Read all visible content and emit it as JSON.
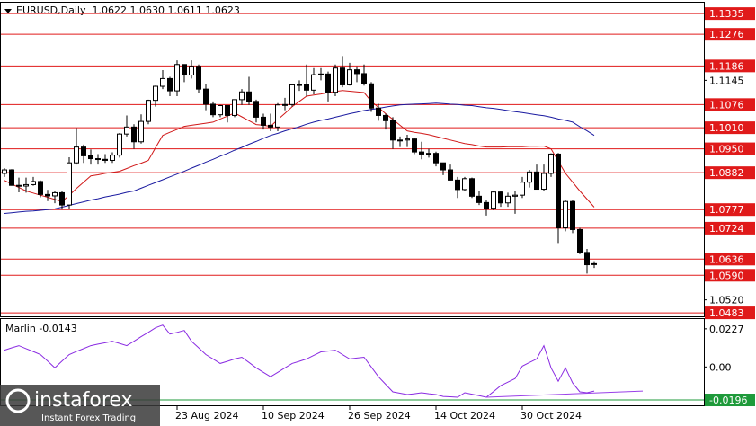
{
  "chart_data": [
    {
      "type": "candlestick",
      "header": "EURUSD,Daily  1.0622 1.0630 1.0611 1.0623",
      "categories": [
        null,
        null,
        null,
        null,
        null,
        null,
        null,
        null,
        null,
        null,
        null,
        null,
        null,
        null,
        null,
        null,
        null,
        null,
        null,
        null,
        null,
        null,
        null,
        null,
        "23 Aug 2024",
        null,
        null,
        null,
        null,
        null,
        null,
        null,
        null,
        null,
        null,
        null,
        "10 Sep 2024",
        null,
        null,
        null,
        null,
        null,
        null,
        null,
        null,
        null,
        null,
        null,
        "26 Sep 2024",
        null,
        null,
        null,
        null,
        null,
        null,
        null,
        null,
        null,
        null,
        null,
        "14 Oct 2024",
        null,
        null,
        null,
        null,
        null,
        null,
        null,
        null,
        null,
        null,
        null,
        "30 Oct 2024",
        null,
        null,
        null,
        null,
        null,
        null,
        null,
        null,
        null,
        null
      ],
      "open": [
        1.088,
        1.089,
        1.0846,
        1.0844,
        1.0848,
        1.0857,
        1.082,
        1.0816,
        1.0825,
        1.079,
        1.091,
        1.0955,
        1.093,
        1.0922,
        1.092,
        1.0917,
        1.0932,
        1.0992,
        1.1012,
        1.097,
        1.1028,
        1.1088,
        1.1128,
        1.115,
        1.1115,
        1.119,
        1.116,
        1.1185,
        1.112,
        1.1077,
        1.1047,
        1.1073,
        1.1045,
        1.109,
        1.1112,
        1.1085,
        1.104,
        1.1017,
        1.1012,
        1.1075,
        1.1076,
        1.1132,
        1.1133,
        1.1117,
        1.1161,
        1.1163,
        1.1111,
        1.118,
        1.1132,
        1.1175,
        1.1164,
        1.1135,
        1.1066,
        1.1045,
        1.103,
        1.0975,
        1.0975,
        1.0978,
        1.0941,
        1.0935,
        1.0937,
        1.091,
        1.089,
        1.0861,
        1.0834,
        1.0865,
        1.0815,
        1.0797,
        1.0781,
        1.0827,
        1.0796,
        1.0815,
        1.0818,
        1.0855,
        1.0884,
        1.0835,
        1.088,
        1.0935,
        1.0725,
        1.08,
        1.072,
        1.0655,
        1.0622
      ],
      "high": [
        1.0895,
        1.0892,
        1.0868,
        1.0868,
        1.087,
        1.086,
        1.0833,
        1.083,
        1.083,
        1.0926,
        1.1009,
        1.0962,
        1.0948,
        1.0935,
        1.0935,
        1.094,
        1.0995,
        1.1045,
        1.102,
        1.1048,
        1.109,
        1.113,
        1.1174,
        1.1155,
        1.1202,
        1.119,
        1.1202,
        1.119,
        1.1135,
        1.1085,
        1.1075,
        1.1073,
        1.109,
        1.112,
        1.1155,
        1.109,
        1.105,
        1.105,
        1.108,
        1.1095,
        1.1135,
        1.1145,
        1.119,
        1.118,
        1.118,
        1.117,
        1.119,
        1.1214,
        1.1195,
        1.1185,
        1.119,
        1.114,
        1.1078,
        1.105,
        1.104,
        1.0985,
        1.099,
        1.098,
        1.097,
        1.095,
        1.0942,
        1.091,
        1.0905,
        1.087,
        1.087,
        1.0868,
        1.083,
        1.0805,
        1.083,
        1.083,
        1.0825,
        1.083,
        1.087,
        1.089,
        1.0905,
        1.0905,
        1.0937,
        1.0938,
        1.0805,
        1.0805,
        1.0725,
        1.0665,
        1.063
      ],
      "low": [
        1.087,
        1.0845,
        1.0826,
        1.0825,
        1.0845,
        1.0812,
        1.0801,
        1.0795,
        1.0777,
        1.078,
        1.0905,
        1.091,
        1.0905,
        1.0905,
        1.091,
        1.091,
        1.0925,
        1.0985,
        1.095,
        1.0965,
        1.102,
        1.107,
        1.112,
        1.11,
        1.11,
        1.114,
        1.115,
        1.111,
        1.106,
        1.104,
        1.104,
        1.1025,
        1.104,
        1.1075,
        1.1075,
        1.1025,
        1.1005,
        1.1,
        1.1,
        1.106,
        1.107,
        1.1115,
        1.11,
        1.1105,
        1.1145,
        1.1085,
        1.11,
        1.1125,
        1.113,
        1.114,
        1.113,
        1.1055,
        1.103,
        1.1005,
        1.095,
        1.0955,
        1.0955,
        1.0935,
        1.092,
        1.0925,
        1.09,
        1.0875,
        1.086,
        1.081,
        1.083,
        1.081,
        1.079,
        1.076,
        1.0775,
        1.0785,
        1.0785,
        1.0765,
        1.081,
        1.084,
        1.0835,
        1.083,
        1.087,
        1.0682,
        1.0715,
        1.071,
        1.065,
        1.0595,
        1.0611
      ],
      "close": [
        1.089,
        1.0846,
        1.0844,
        1.0848,
        1.0857,
        1.082,
        1.0816,
        1.0825,
        1.079,
        1.091,
        1.0955,
        1.093,
        1.0922,
        1.092,
        1.0917,
        1.0932,
        1.0992,
        1.1012,
        1.097,
        1.1028,
        1.1088,
        1.1128,
        1.115,
        1.1115,
        1.119,
        1.116,
        1.1185,
        1.112,
        1.1077,
        1.1047,
        1.1073,
        1.1045,
        1.109,
        1.1112,
        1.1085,
        1.104,
        1.1017,
        1.1012,
        1.1075,
        1.1076,
        1.1132,
        1.1133,
        1.1117,
        1.1161,
        1.1163,
        1.1111,
        1.118,
        1.1132,
        1.1175,
        1.1164,
        1.1135,
        1.1066,
        1.1045,
        1.103,
        1.0975,
        1.0975,
        1.0978,
        1.0941,
        1.0935,
        1.0937,
        1.091,
        1.089,
        1.0861,
        1.0834,
        1.0865,
        1.0815,
        1.0797,
        1.0781,
        1.0827,
        1.0796,
        1.0815,
        1.0818,
        1.0855,
        1.0884,
        1.0835,
        1.088,
        1.0935,
        1.0725,
        1.08,
        1.072,
        1.0655,
        1.062,
        1.0623
      ],
      "series": [
        {
          "color": "#d01818",
          "values": [
            1.086,
            1.085,
            1.084,
            1.083,
            1.0824,
            1.0818,
            1.0812,
            1.0806,
            1.08,
            1.0818,
            1.0837,
            1.0855,
            1.0873,
            1.0876,
            1.088,
            1.0883,
            1.0886,
            1.0894,
            1.0902,
            1.0909,
            1.0917,
            1.0953,
            1.0988,
            1.0997,
            1.1005,
            1.1014,
            1.1017,
            1.102,
            1.1023,
            1.1026,
            1.1035,
            1.1043,
            1.1052,
            1.1041,
            1.103,
            1.1019,
            1.1017,
            1.1014,
            1.1033,
            1.1051,
            1.107,
            1.1085,
            1.11,
            1.1103,
            1.1106,
            1.111,
            1.1113,
            1.1116,
            1.1114,
            1.1112,
            1.111,
            1.1085,
            1.1068,
            1.105,
            1.1034,
            1.1017,
            1.1001,
            1.0997,
            1.0994,
            1.099,
            1.0985,
            1.098,
            1.0975,
            1.097,
            1.0965,
            1.0962,
            1.0958,
            1.0955,
            1.0955,
            1.0955,
            1.0956,
            1.0956,
            1.0956,
            1.0957,
            1.0957,
            1.0958,
            1.095,
            1.0915,
            1.088,
            1.0855,
            1.083,
            1.0807,
            1.0784
          ]
        },
        {
          "color": "#1a1aa0",
          "values": [
            1.0766,
            1.0768,
            1.077,
            1.0772,
            1.0773,
            1.0775,
            1.0777,
            1.0779,
            1.0784,
            1.0789,
            1.0794,
            1.0799,
            1.0804,
            1.0808,
            1.0813,
            1.0817,
            1.0821,
            1.0826,
            1.083,
            1.0838,
            1.0846,
            1.0854,
            1.0862,
            1.087,
            1.0878,
            1.0886,
            1.0895,
            1.0903,
            1.0912,
            1.092,
            1.0929,
            1.0937,
            1.0946,
            1.0954,
            1.0963,
            1.0971,
            1.098,
            1.0988,
            1.0994,
            1.1001,
            1.1007,
            1.1013,
            1.102,
            1.1026,
            1.1031,
            1.1035,
            1.104,
            1.1045,
            1.105,
            1.1054,
            1.1059,
            1.1062,
            1.1065,
            1.1069,
            1.1072,
            1.1075,
            1.1076,
            1.1077,
            1.1078,
            1.1079,
            1.108,
            1.1079,
            1.1077,
            1.1076,
            1.1074,
            1.1073,
            1.107,
            1.1067,
            1.1065,
            1.1062,
            1.1059,
            1.1056,
            1.1053,
            1.105,
            1.1047,
            1.1044,
            1.104,
            1.1035,
            1.1031,
            1.1026,
            1.1013,
            1.1001,
            1.0988
          ]
        }
      ],
      "ylim": [
        1.0473,
        1.1366
      ],
      "yticks": [
        1.1145,
        {
          "value": 1.052,
          "label": "1.0520"
        }
      ],
      "level_color": "#e01a1a",
      "levels": [
        1.1335,
        1.1276,
        1.1186,
        1.1076,
        {
          "value": 1.101,
          "label": "1.1010"
        },
        {
          "value": 1.095,
          "label": "1.0950"
        },
        1.0882,
        1.0777,
        1.0724,
        1.0636,
        {
          "value": 1.059,
          "label": "1.0590"
        },
        1.0483
      ]
    },
    {
      "type": "line",
      "title": "Marlin -0.0143",
      "series": [
        {
          "color": "#8a2be2",
          "values": [
            0.01,
            0.0114,
            0.0127,
            0.0109,
            0.0092,
            0.0074,
            0.0035,
            -0.0005,
            0.0035,
            0.0074,
            0.0092,
            0.0109,
            0.0127,
            0.0136,
            0.0144,
            0.0153,
            0.014,
            0.0127,
            0.0153,
            0.018,
            0.0206,
            0.0233,
            0.0249,
            0.0196,
            0.0206,
            0.0217,
            0.0153,
            0.0114,
            0.0074,
            0.0048,
            0.0021,
            0.0034,
            0.0048,
            0.0058,
            0.0027,
            -0.0005,
            -0.0032,
            -0.0058,
            -0.0032,
            -0.0005,
            0.0021,
            0.0034,
            0.0048,
            0.0069,
            0.009,
            0.0095,
            0.01,
            0.0074,
            0.0048,
            0.0053,
            0.0058,
            0.0,
            -0.0058,
            -0.0103,
            -0.0148,
            -0.0156,
            -0.0164,
            -0.0159,
            -0.0153,
            -0.0159,
            -0.0164,
            -0.0175,
            -0.0177,
            -0.018,
            -0.0153,
            -0.0162,
            -0.0171,
            -0.018,
            -0.0146,
            -0.0111,
            -0.009,
            -0.0069,
            0.0005,
            0.0027,
            0.0048,
            0.0127,
            -0.0005,
            -0.0085,
            -0.0005,
            -0.0095,
            -0.0148,
            -0.0153,
            -0.0143
          ]
        }
      ],
      "trendline": {
        "color": "#9a40e8",
        "values": [
          -0.018,
          -0.0143
        ]
      },
      "ylim": [
        -0.0228,
        0.0285
      ],
      "yticks": [
        0.0227,
        {
          "value": 0,
          "label": "0.00"
        }
      ],
      "level": {
        "value": -0.0196,
        "color": "#1e9a3a"
      }
    }
  ],
  "watermark": {
    "brand": "instaforex",
    "tagline": "Instant Forex Trading"
  }
}
